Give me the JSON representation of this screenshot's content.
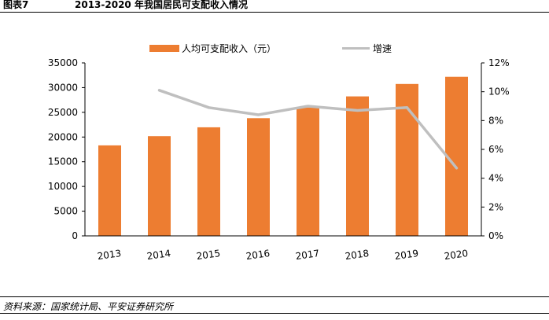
{
  "header": {
    "figure_label": "图表7",
    "figure_title": "2013-2020 年我国居民可支配收入情况"
  },
  "footer": {
    "source": "资料来源：国家统计局、平安证券研究所"
  },
  "colors": {
    "bar": "#ED7D31",
    "line": "#BFBFBF",
    "axis": "#000000"
  },
  "chart_data": {
    "type": "bar",
    "categories": [
      "2013",
      "2014",
      "2015",
      "2016",
      "2017",
      "2018",
      "2019",
      "2020"
    ],
    "series": [
      {
        "name": "人均可支配收入（元）",
        "type": "bar",
        "axis": "left",
        "values": [
          18311,
          20167,
          21966,
          23821,
          25974,
          28228,
          30733,
          32189
        ]
      },
      {
        "name": "增速",
        "type": "line",
        "axis": "right",
        "values": [
          null,
          10.1,
          8.9,
          8.4,
          9.0,
          8.7,
          8.9,
          4.7
        ]
      }
    ],
    "y_left": {
      "min": 0,
      "max": 35000,
      "ticks": [
        "0",
        "5000",
        "10000",
        "15000",
        "20000",
        "25000",
        "30000",
        "35000"
      ]
    },
    "y_right": {
      "min": 0,
      "max": 12,
      "ticks": [
        "0%",
        "2%",
        "4%",
        "6%",
        "8%",
        "10%",
        "12%"
      ]
    },
    "legend_position": "top",
    "grid": false
  }
}
